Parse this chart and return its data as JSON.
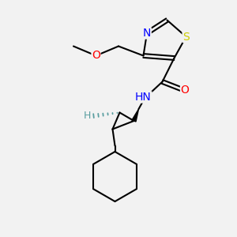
{
  "bg_color": "#f2f2f2",
  "atom_colors": {
    "N": "#0000ff",
    "O": "#ff0000",
    "S": "#cccc00",
    "C": "#000000",
    "H": "#5a9ea0"
  },
  "bond_color": "#000000",
  "bond_width": 1.5
}
